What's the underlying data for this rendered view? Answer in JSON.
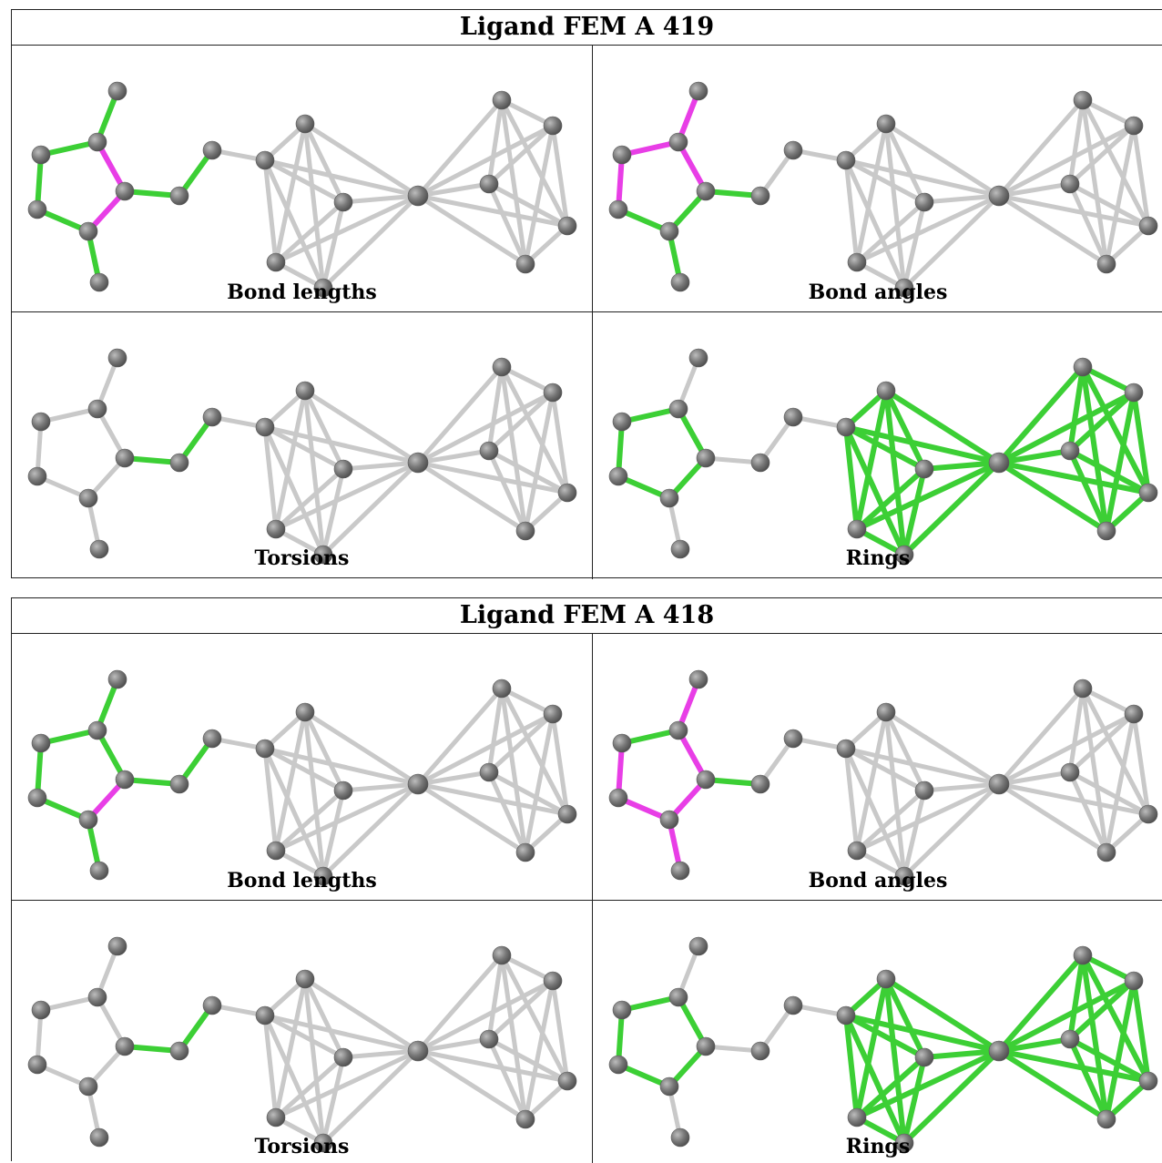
{
  "colors": {
    "normal_bond": "#c9c9c9",
    "good_bond": "#3ccf35",
    "outlier_bond": "#e83ee6",
    "atom": "#777777"
  },
  "atoms": {
    "names": [
      "m1",
      "c1",
      "c5",
      "c2",
      "c4",
      "c3",
      "m3",
      "x1",
      "x2",
      "a1",
      "a2",
      "a3",
      "a4",
      "a5",
      "fe",
      "b1",
      "b2",
      "b3",
      "b4",
      "b5"
    ]
  },
  "blocks": [
    {
      "title": "Ligand FEM A 419",
      "panels": [
        {
          "caption": "Bond lengths",
          "green": [
            "m1-c1",
            "c1-c5",
            "c5-c4",
            "c4-c3",
            "c3-m3",
            "c2-x1",
            "x1-x2"
          ],
          "magenta": [
            "c1-c2",
            "c2-c3"
          ]
        },
        {
          "caption": "Bond angles",
          "green": [
            "c5-c4",
            "c4-c3",
            "c3-m3",
            "c2-c3",
            "c2-x1"
          ],
          "magenta": [
            "m1-c1",
            "c1-c5",
            "c1-c2",
            "c5-c4@left"
          ]
        },
        {
          "caption": "Torsions",
          "green": [
            "c2-x1",
            "x1-x2"
          ],
          "magenta": []
        },
        {
          "caption": "Rings",
          "green": [
            "ring1",
            "ring2",
            "ring3"
          ],
          "magenta": []
        }
      ]
    },
    {
      "title": "Ligand FEM A 418",
      "panels": [
        {
          "caption": "Bond lengths",
          "green": [
            "m1-c1",
            "c1-c5",
            "c5-c4",
            "c4-c3",
            "c3-m3",
            "c1-c2",
            "c2-x1",
            "x1-x2"
          ],
          "magenta": [
            "c2-c3"
          ]
        },
        {
          "caption": "Bond angles",
          "green": [
            "c1-c5",
            "c2-x1"
          ],
          "magenta": [
            "m1-c1",
            "c1-c2",
            "c2-c3",
            "c5-c4",
            "c4-c3",
            "c3-m3"
          ]
        },
        {
          "caption": "Torsions",
          "green": [
            "c2-x1",
            "x1-x2"
          ],
          "magenta": []
        },
        {
          "caption": "Rings",
          "green": [
            "ring1",
            "ring2",
            "ring3"
          ],
          "magenta": []
        }
      ]
    }
  ]
}
